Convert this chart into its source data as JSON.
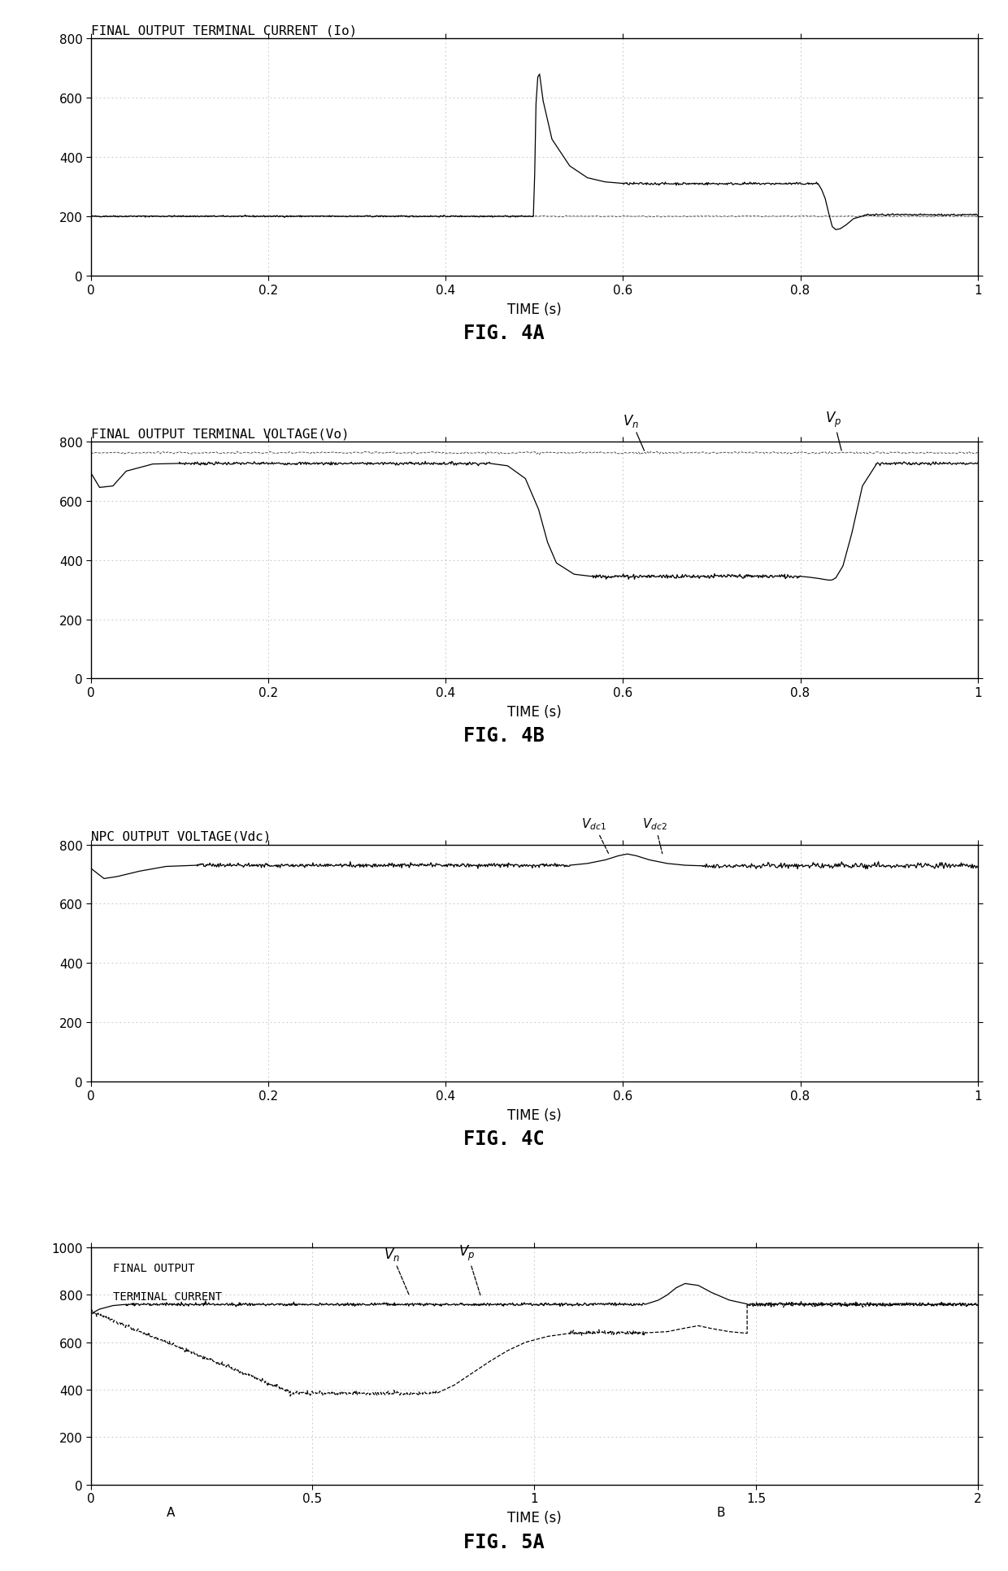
{
  "bg_color": "#ffffff",
  "line_color": "#000000",
  "grid_color": "#aaaaaa",
  "fig4a_title": "FINAL OUTPUT TERMINAL CURRENT (Io)",
  "fig4b_title": "FINAL OUTPUT TERMINAL VOLTAGE(Vo)",
  "fig4c_title": "NPC OUTPUT VOLTAGE(Vdc)",
  "fig5a_title_line1": "FINAL OUTPUT",
  "fig5a_title_line2": "TERMINAL CURRENT",
  "xlabel": "TIME (s)",
  "fig_labels": [
    "FIG. 4A",
    "FIG. 4B",
    "FIG. 4C",
    "FIG. 5A"
  ],
  "yticks_800": [
    0,
    200,
    400,
    600,
    800
  ],
  "xticks_1s": [
    0.0,
    0.2,
    0.4,
    0.6,
    0.8,
    1.0
  ],
  "xtick_labels_1s": [
    "0",
    "0.2",
    "0.4",
    "0.6",
    "0.8",
    "1"
  ],
  "yticks_1000": [
    0,
    200,
    400,
    600,
    800,
    1000
  ],
  "xticks_2s": [
    0.0,
    0.5,
    1.0,
    1.5,
    2.0
  ],
  "xtick_labels_2s": [
    "0",
    "0.5",
    "1",
    "1.5",
    "2"
  ]
}
